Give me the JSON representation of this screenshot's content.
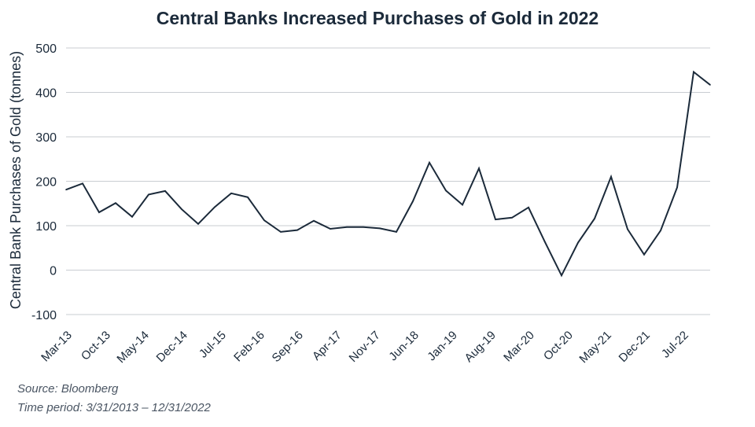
{
  "chart_data": {
    "type": "line",
    "title": "Central Banks Increased Purchases of Gold in 2022",
    "xlabel": "",
    "ylabel": "Central Bank Purchases of Gold (tonnes)",
    "ylim": [
      -100,
      500
    ],
    "yticks": [
      -100,
      0,
      100,
      200,
      300,
      400,
      500
    ],
    "x_tick_labels": [
      "Mar-13",
      "Oct-13",
      "May-14",
      "Dec-14",
      "Jul-15",
      "Feb-16",
      "Sep-16",
      "Apr-17",
      "Nov-17",
      "Jun-18",
      "Jan-19",
      "Aug-19",
      "Mar-20",
      "Oct-20",
      "May-21",
      "Dec-21",
      "Jul-22"
    ],
    "grid": "horizontal",
    "color": "#1b2a3a",
    "series": [
      {
        "x": [
          "Mar-13",
          "Jun-13",
          "Sep-13",
          "Dec-13",
          "Mar-14",
          "Jun-14",
          "Sep-14",
          "Dec-14",
          "Mar-15",
          "Jun-15",
          "Sep-15",
          "Dec-15",
          "Mar-16",
          "Jun-16",
          "Sep-16",
          "Dec-16",
          "Mar-17",
          "Jun-17",
          "Sep-17",
          "Dec-17",
          "Mar-18",
          "Jun-18",
          "Sep-18",
          "Dec-18",
          "Mar-19",
          "Jun-19",
          "Sep-19",
          "Dec-19",
          "Mar-20",
          "Jun-20",
          "Sep-20",
          "Dec-20",
          "Mar-21",
          "Jun-21",
          "Sep-21",
          "Dec-21",
          "Mar-22",
          "Jun-22",
          "Sep-22",
          "Dec-22"
        ],
        "values": [
          181,
          195,
          130,
          151,
          120,
          170,
          178,
          137,
          104,
          142,
          173,
          164,
          112,
          86,
          90,
          111,
          93,
          97,
          97,
          94,
          86,
          155,
          242,
          179,
          147,
          229,
          114,
          118,
          141,
          63,
          -12,
          62,
          116,
          210,
          92,
          35,
          89,
          186,
          446,
          417
        ]
      }
    ]
  },
  "notes": {
    "source": "Source: Bloomberg",
    "period": "Time period: 3/31/2013 – 12/31/2022"
  }
}
